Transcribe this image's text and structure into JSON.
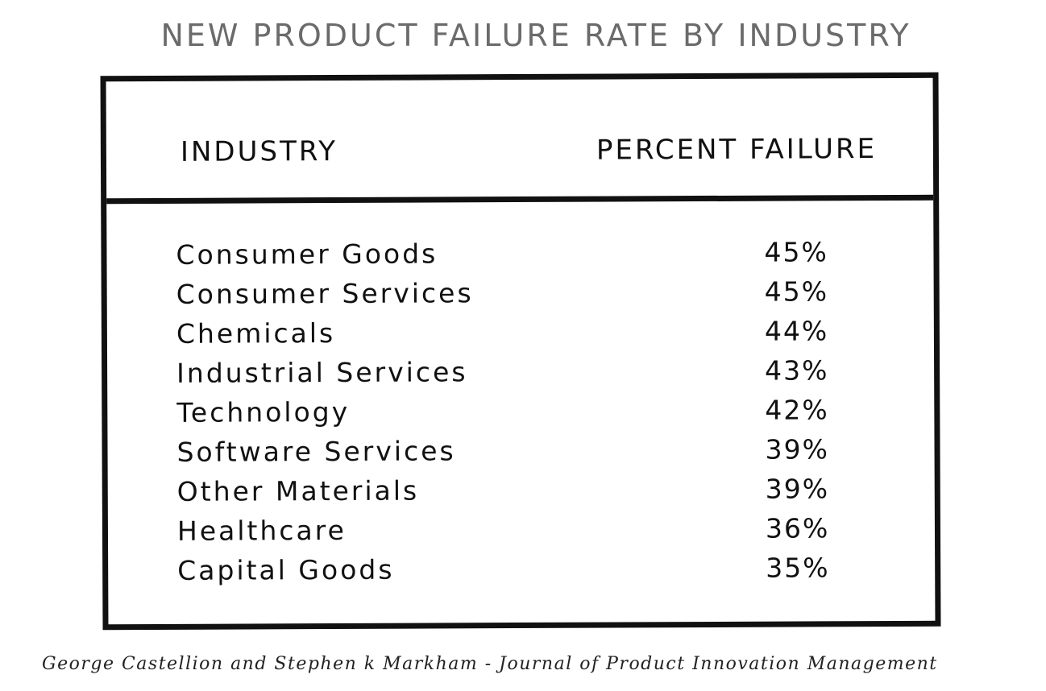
{
  "chart_data": {
    "type": "table",
    "title": "NEW PRODUCT FAILURE RATE BY INDUSTRY",
    "columns": [
      "INDUSTRY",
      "PERCENT FAILURE"
    ],
    "rows": [
      {
        "industry": "Consumer Goods",
        "percent_failure": "45%"
      },
      {
        "industry": "Consumer Services",
        "percent_failure": "45%"
      },
      {
        "industry": "Chemicals",
        "percent_failure": "44%"
      },
      {
        "industry": "Industrial Services",
        "percent_failure": "43%"
      },
      {
        "industry": "Technology",
        "percent_failure": "42%"
      },
      {
        "industry": "Software Services",
        "percent_failure": "39%"
      },
      {
        "industry": "Other Materials",
        "percent_failure": "39%"
      },
      {
        "industry": "Healthcare",
        "percent_failure": "36%"
      },
      {
        "industry": "Capital Goods",
        "percent_failure": "35%"
      }
    ],
    "source": "George Castellion and Stephen k Markham - Journal of Product Innovation Management"
  },
  "colors": {
    "title": "#6b6b6b",
    "ink": "#111111",
    "background": "#ffffff"
  }
}
